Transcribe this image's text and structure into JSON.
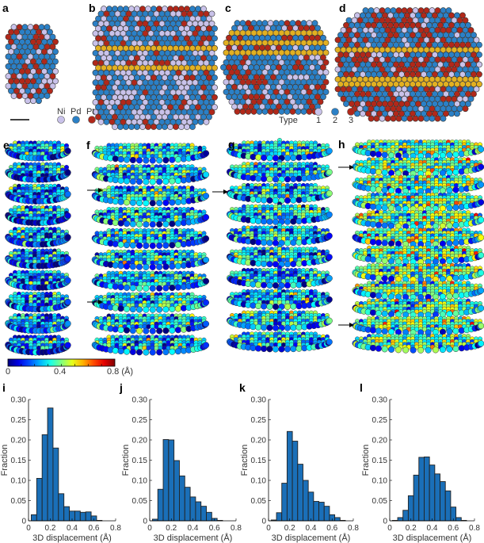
{
  "panel_labels": {
    "a": "a",
    "b": "b",
    "c": "c",
    "d": "d",
    "e": "e",
    "f": "f",
    "g": "g",
    "h": "h",
    "i": "i",
    "j": "j",
    "k": "k",
    "l": "l"
  },
  "element_legend": {
    "items": [
      {
        "label": "Ni",
        "color": "#c9c2ea"
      },
      {
        "label": "Pd",
        "color": "#2b80c6"
      },
      {
        "label": "Pt",
        "color": "#b1281a"
      }
    ]
  },
  "type_legend": {
    "title": "Type",
    "items": [
      {
        "label": "1",
        "color": "#c9c2ea"
      },
      {
        "label": "2",
        "color": "#2b80c6"
      },
      {
        "label": "3",
        "color": "#b1281a"
      }
    ]
  },
  "band_color": "#e2b021",
  "colorbar": {
    "colormap": "jet",
    "min_label": "0",
    "mid_label": "0.4",
    "max_label": "0.8 (Å)",
    "range": [
      0,
      0.8
    ]
  },
  "chart_data": [
    {
      "panel": "i",
      "type": "bar",
      "xlabel": "3D displacement (Å)",
      "ylabel": "Fraction",
      "xlim": [
        0,
        0.8
      ],
      "ylim": [
        0,
        0.3
      ],
      "xticks": [
        "0",
        "0.2",
        "0.4",
        "0.6",
        "0.8"
      ],
      "yticks": [
        "0",
        "0.05",
        "0.10",
        "0.15",
        "0.20",
        "0.25",
        "0.30"
      ],
      "bin_width": 0.05,
      "x": [
        0.05,
        0.1,
        0.15,
        0.2,
        0.25,
        0.3,
        0.35,
        0.4,
        0.45,
        0.5,
        0.55,
        0.6,
        0.65
      ],
      "values": [
        0.015,
        0.105,
        0.213,
        0.279,
        0.18,
        0.067,
        0.035,
        0.024,
        0.024,
        0.021,
        0.022,
        0.012,
        0.001
      ],
      "color": "#1a6fb8"
    },
    {
      "panel": "j",
      "type": "bar",
      "xlabel": "3D displacement (Å)",
      "ylabel": "Fraction",
      "xlim": [
        0,
        0.8
      ],
      "ylim": [
        0,
        0.3
      ],
      "xticks": [
        "0",
        "0.2",
        "0.4",
        "0.6",
        "0.8"
      ],
      "yticks": [
        "0",
        "0.05",
        "0.10",
        "0.15",
        "0.20",
        "0.25",
        "0.30"
      ],
      "bin_width": 0.05,
      "x": [
        0.05,
        0.1,
        0.15,
        0.2,
        0.25,
        0.3,
        0.35,
        0.4,
        0.45,
        0.5,
        0.55,
        0.6,
        0.65
      ],
      "values": [
        0.004,
        0.078,
        0.201,
        0.2,
        0.149,
        0.111,
        0.083,
        0.059,
        0.047,
        0.036,
        0.021,
        0.006,
        0.001
      ],
      "color": "#1a6fb8"
    },
    {
      "panel": "k",
      "type": "bar",
      "xlabel": "3D displacement (Å)",
      "ylabel": "Fraction",
      "xlim": [
        0,
        0.8
      ],
      "ylim": [
        0,
        0.3
      ],
      "xticks": [
        "0",
        "0.2",
        "0.4",
        "0.6",
        "0.8"
      ],
      "yticks": [
        "0",
        "0.05",
        "0.10",
        "0.15",
        "0.20",
        "0.25",
        "0.30"
      ],
      "bin_width": 0.05,
      "x": [
        0.05,
        0.1,
        0.15,
        0.2,
        0.25,
        0.3,
        0.35,
        0.4,
        0.45,
        0.5,
        0.55,
        0.6,
        0.65,
        0.7
      ],
      "values": [
        0.002,
        0.02,
        0.093,
        0.221,
        0.197,
        0.14,
        0.1,
        0.071,
        0.048,
        0.046,
        0.036,
        0.015,
        0.008,
        0.001
      ],
      "color": "#1a6fb8"
    },
    {
      "panel": "l",
      "type": "bar",
      "xlabel": "3D displacement (Å)",
      "ylabel": "Fraction",
      "xlim": [
        0,
        0.8
      ],
      "ylim": [
        0,
        0.3
      ],
      "xticks": [
        "0",
        "0.2",
        "0.4",
        "0.6",
        "0.8"
      ],
      "yticks": [
        "0",
        "0.05",
        "0.10",
        "0.15",
        "0.20",
        "0.25",
        "0.30"
      ],
      "bin_width": 0.05,
      "x": [
        0.05,
        0.1,
        0.15,
        0.2,
        0.25,
        0.3,
        0.35,
        0.4,
        0.45,
        0.5,
        0.55,
        0.6,
        0.65,
        0.7
      ],
      "values": [
        0.001,
        0.008,
        0.026,
        0.062,
        0.113,
        0.157,
        0.158,
        0.138,
        0.116,
        0.097,
        0.074,
        0.034,
        0.008,
        0.001
      ],
      "color": "#1a6fb8"
    }
  ]
}
